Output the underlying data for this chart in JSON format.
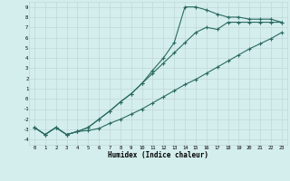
{
  "xlabel": "Humidex (Indice chaleur)",
  "bg_color": "#d4eeed",
  "grid_color": "#c0d8d6",
  "line_color": "#2a6b60",
  "xlim": [
    -0.5,
    23.5
  ],
  "ylim": [
    -4.5,
    9.5
  ],
  "xticks": [
    0,
    1,
    2,
    3,
    4,
    5,
    6,
    7,
    8,
    9,
    10,
    11,
    12,
    13,
    14,
    15,
    16,
    17,
    18,
    19,
    20,
    21,
    22,
    23
  ],
  "yticks": [
    -4,
    -3,
    -2,
    -1,
    0,
    1,
    2,
    3,
    4,
    5,
    6,
    7,
    8,
    9
  ],
  "line1_x": [
    0,
    1,
    2,
    3,
    4,
    5,
    6,
    7,
    8,
    9,
    10,
    11,
    12,
    13,
    14,
    15,
    16,
    17,
    18,
    19,
    20,
    21,
    22,
    23
  ],
  "line1_y": [
    -2.8,
    -3.5,
    -2.8,
    -3.5,
    -3.2,
    -3.1,
    -2.9,
    -2.4,
    -2.0,
    -1.5,
    -1.0,
    -0.4,
    0.2,
    0.8,
    1.4,
    1.9,
    2.5,
    3.1,
    3.7,
    4.3,
    4.9,
    5.4,
    5.9,
    6.5
  ],
  "line2_x": [
    0,
    1,
    2,
    3,
    4,
    5,
    6,
    7,
    8,
    9,
    10,
    11,
    12,
    13,
    14,
    15,
    16,
    17,
    18,
    19,
    20,
    21,
    22,
    23
  ],
  "line2_y": [
    -2.8,
    -3.5,
    -2.8,
    -3.5,
    -3.2,
    -2.8,
    -2.0,
    -1.2,
    -0.3,
    0.5,
    1.5,
    2.5,
    3.5,
    4.5,
    5.5,
    6.5,
    7.0,
    6.8,
    7.5,
    7.5,
    7.5,
    7.5,
    7.5,
    7.5
  ],
  "line3_x": [
    0,
    1,
    2,
    3,
    4,
    5,
    6,
    7,
    8,
    9,
    10,
    11,
    12,
    13,
    14,
    15,
    16,
    17,
    18,
    19,
    20,
    21,
    22,
    23
  ],
  "line3_y": [
    -2.8,
    -3.5,
    -2.8,
    -3.5,
    -3.2,
    -2.8,
    -2.0,
    -1.2,
    -0.3,
    0.5,
    1.5,
    2.8,
    4.0,
    5.5,
    9.0,
    9.0,
    8.7,
    8.3,
    8.0,
    8.0,
    7.8,
    7.8,
    7.8,
    7.5
  ],
  "marker": "+",
  "markersize": 3,
  "linewidth": 0.8
}
